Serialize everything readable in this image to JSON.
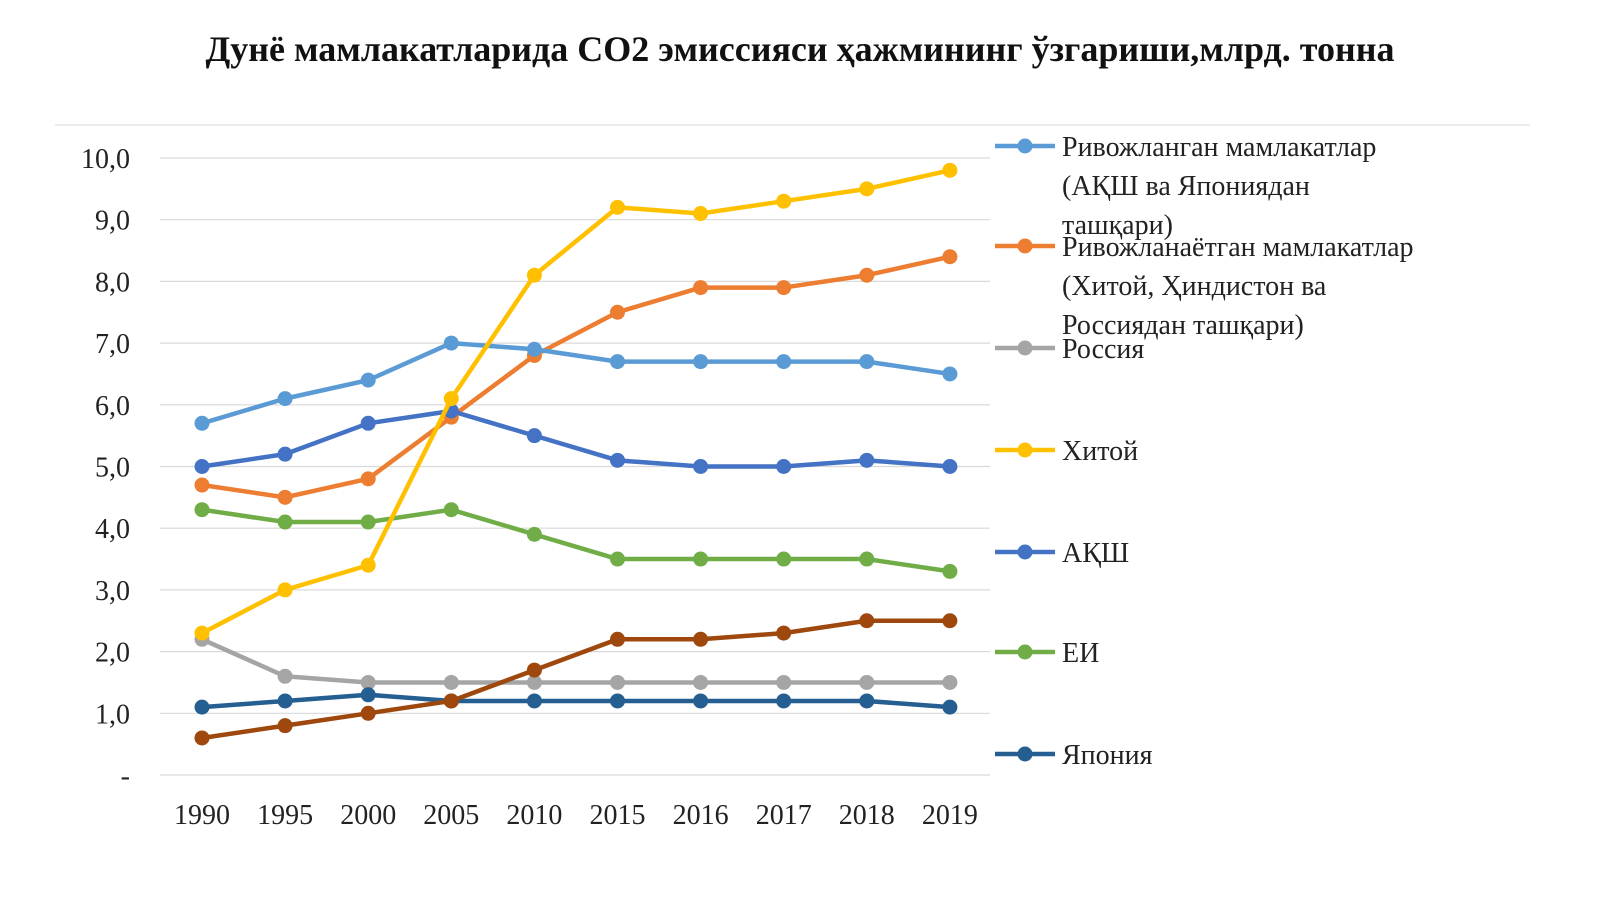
{
  "chart_data": {
    "type": "line",
    "title": "Дунё мамлакатларида CO2 эмиссияси ҳажмининг ўзгариши,млрд. тонна",
    "xlabel": "",
    "ylabel": "",
    "categories": [
      "1990",
      "1995",
      "2000",
      "2005",
      "2010",
      "2015",
      "2016",
      "2017",
      "2018",
      "2019"
    ],
    "y_ticks": [
      "-",
      "1,0",
      "2,0",
      "3,0",
      "4,0",
      "5,0",
      "6,0",
      "7,0",
      "8,0",
      "9,0",
      "10,0"
    ],
    "ylim": [
      0,
      10
    ],
    "grid": true,
    "legend_position": "right",
    "series": [
      {
        "name_lines": [
          "Ривожланган мамлакатлар",
          "(АҚШ ва Япониядан",
          "ташқари)"
        ],
        "color": "#5b9bd5",
        "values": [
          5.7,
          6.1,
          6.4,
          7.0,
          6.9,
          6.7,
          6.7,
          6.7,
          6.7,
          6.5
        ]
      },
      {
        "name_lines": [
          "Ривожланаётган мамлакатлар",
          "(Хитой, Ҳиндистон ва",
          "Россиядан ташқари)"
        ],
        "color": "#ed7d31",
        "values": [
          4.7,
          4.5,
          4.8,
          5.8,
          6.8,
          7.5,
          7.9,
          7.9,
          8.1,
          8.4
        ]
      },
      {
        "name_lines": [
          "Россия"
        ],
        "color": "#a5a5a5",
        "values": [
          2.2,
          1.6,
          1.5,
          1.5,
          1.5,
          1.5,
          1.5,
          1.5,
          1.5,
          1.5
        ]
      },
      {
        "name_lines": [
          "Хитой"
        ],
        "color": "#ffc000",
        "values": [
          2.3,
          3.0,
          3.4,
          6.1,
          8.1,
          9.2,
          9.1,
          9.3,
          9.5,
          9.8
        ]
      },
      {
        "name_lines": [
          "АҚШ"
        ],
        "color": "#4472c4",
        "values": [
          5.0,
          5.2,
          5.7,
          5.9,
          5.5,
          5.1,
          5.0,
          5.0,
          5.1,
          5.0
        ]
      },
      {
        "name_lines": [
          "ЕИ"
        ],
        "color": "#70ad47",
        "values": [
          4.3,
          4.1,
          4.1,
          4.3,
          3.9,
          3.5,
          3.5,
          3.5,
          3.5,
          3.3
        ]
      },
      {
        "name_lines": [
          "Япония"
        ],
        "color": "#255e91",
        "values": [
          1.1,
          1.2,
          1.3,
          1.2,
          1.2,
          1.2,
          1.2,
          1.2,
          1.2,
          1.1
        ]
      },
      {
        "name_lines": [],
        "color": "#9e480e",
        "values": [
          0.6,
          0.8,
          1.0,
          1.2,
          1.7,
          2.2,
          2.2,
          2.3,
          2.5,
          2.5
        ]
      }
    ]
  }
}
